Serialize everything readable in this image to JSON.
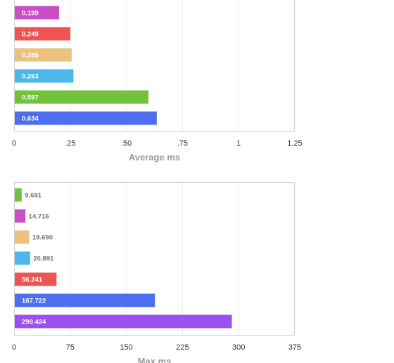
{
  "chart_data": [
    {
      "type": "bar",
      "orientation": "horizontal",
      "xlabel": "Average ms",
      "xlim": [
        0,
        1.25
      ],
      "ticks": [
        0,
        0.25,
        0.5,
        0.75,
        1,
        1.25
      ],
      "tick_labels": [
        "0",
        ".25",
        ".50",
        ".75",
        "1",
        "1.25"
      ],
      "grid": true,
      "bars": [
        {
          "value": 0.199,
          "label": "0.199",
          "color": "#c94fc4"
        },
        {
          "value": 0.249,
          "label": "0.249",
          "color": "#ef5454"
        },
        {
          "value": 0.255,
          "label": "0.255",
          "color": "#edc27f"
        },
        {
          "value": 0.263,
          "label": "0.263",
          "color": "#4cb8ea"
        },
        {
          "value": 0.597,
          "label": "0.597",
          "color": "#72c33b"
        },
        {
          "value": 0.634,
          "label": "0.634",
          "color": "#4e6ef0"
        }
      ]
    },
    {
      "type": "bar",
      "orientation": "horizontal",
      "xlabel": "Max ms",
      "xlim": [
        0,
        375
      ],
      "ticks": [
        0,
        75,
        150,
        225,
        300,
        375
      ],
      "tick_labels": [
        "0",
        "75",
        "150",
        "225",
        "300",
        "375"
      ],
      "grid": true,
      "bars": [
        {
          "value": 9.691,
          "label": "9.691",
          "color": "#72c33b"
        },
        {
          "value": 14.716,
          "label": "14.716",
          "color": "#c94fc4"
        },
        {
          "value": 19.69,
          "label": "19.690",
          "color": "#edc27f"
        },
        {
          "value": 20.891,
          "label": "20.891",
          "color": "#4cb8ea"
        },
        {
          "value": 56.241,
          "label": "56.241",
          "color": "#ef5454"
        },
        {
          "value": 187.722,
          "label": "187.722",
          "color": "#4e6ef0"
        },
        {
          "value": 290.424,
          "label": "290.424",
          "color": "#9b4ff0"
        }
      ]
    }
  ]
}
